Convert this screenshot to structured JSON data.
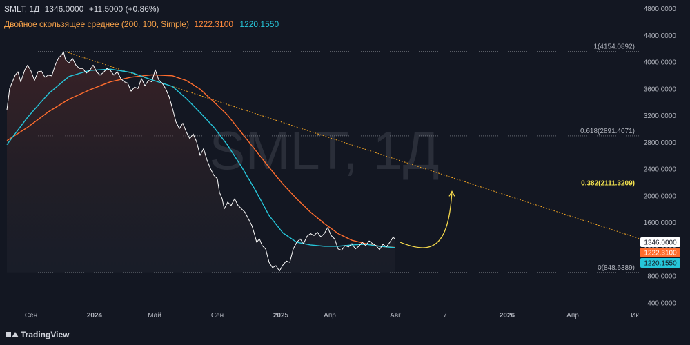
{
  "header": {
    "symbol": "SMLT, 1Д",
    "price": "1346.0000",
    "change": "+11.5000 (+0.86%)",
    "ma_title": "Двойное скользящее среднее (200, 100, Simple)",
    "ma_value_1": "1222.3100",
    "ma_value_2": "1220.1550"
  },
  "watermark": "SMLT, 1Д",
  "brand": "TradingView",
  "colors": {
    "background": "#131722",
    "price_line": "#ffffff",
    "ma_200": "#ff6d2e",
    "ma_100": "#26c6da",
    "trendline": "#f5a623",
    "fib_line": "#9aa0a6",
    "fib_highlight": "#f2e14f",
    "projection_arrow": "#f2d64b"
  },
  "chart_data": {
    "type": "line",
    "y_ticks": [
      "4800.0000",
      "4400.0000",
      "4000.0000",
      "3600.0000",
      "3200.0000",
      "2800.0000",
      "2400.0000",
      "2000.0000",
      "1600.0000",
      "1200.0000",
      "800.0000",
      "400.0000"
    ],
    "x_ticks": [
      "Сен",
      "2024",
      "Май",
      "Сен",
      "2025",
      "Апр",
      "Авг",
      "7",
      "2026",
      "Апр",
      "Ик"
    ],
    "ylim": [
      400,
      4800
    ],
    "series": [
      {
        "points": [
          [
            0,
            3280
          ],
          [
            4,
            3600
          ],
          [
            8,
            3700
          ],
          [
            12,
            3800
          ],
          [
            16,
            3850
          ],
          [
            20,
            3700
          ],
          [
            26,
            3880
          ],
          [
            30,
            3950
          ],
          [
            35,
            3860
          ],
          [
            40,
            3720
          ],
          [
            45,
            3850
          ],
          [
            50,
            3860
          ],
          [
            55,
            3770
          ],
          [
            60,
            3800
          ],
          [
            65,
            3790
          ],
          [
            70,
            3950
          ],
          [
            75,
            4060
          ],
          [
            80,
            4110
          ],
          [
            82,
            4150
          ],
          [
            85,
            4030
          ],
          [
            90,
            3980
          ],
          [
            95,
            4050
          ],
          [
            100,
            3950
          ],
          [
            105,
            3900
          ],
          [
            110,
            3900
          ],
          [
            115,
            3830
          ],
          [
            120,
            3870
          ],
          [
            125,
            3950
          ],
          [
            130,
            3850
          ],
          [
            135,
            3800
          ],
          [
            140,
            3840
          ],
          [
            145,
            3900
          ],
          [
            150,
            3870
          ],
          [
            155,
            3800
          ],
          [
            160,
            3850
          ],
          [
            165,
            3750
          ],
          [
            170,
            3700
          ],
          [
            175,
            3680
          ],
          [
            180,
            3560
          ],
          [
            185,
            3620
          ],
          [
            190,
            3600
          ],
          [
            195,
            3750
          ],
          [
            200,
            3640
          ],
          [
            205,
            3720
          ],
          [
            210,
            3700
          ],
          [
            215,
            3880
          ],
          [
            220,
            3730
          ],
          [
            225,
            3680
          ],
          [
            230,
            3600
          ],
          [
            235,
            3480
          ],
          [
            240,
            3300
          ],
          [
            245,
            3100
          ],
          [
            250,
            3000
          ],
          [
            255,
            3080
          ],
          [
            260,
            2950
          ],
          [
            265,
            2850
          ],
          [
            270,
            2920
          ],
          [
            275,
            2800
          ],
          [
            280,
            2600
          ],
          [
            285,
            2700
          ],
          [
            290,
            2530
          ],
          [
            295,
            2400
          ],
          [
            300,
            2300
          ],
          [
            305,
            2250
          ],
          [
            308,
            2050
          ],
          [
            312,
            1950
          ],
          [
            315,
            1800
          ],
          [
            320,
            1900
          ],
          [
            325,
            1850
          ],
          [
            330,
            1950
          ],
          [
            335,
            1850
          ],
          [
            340,
            1800
          ],
          [
            345,
            1750
          ],
          [
            350,
            1650
          ],
          [
            355,
            1550
          ],
          [
            358,
            1450
          ],
          [
            362,
            1300
          ],
          [
            366,
            1350
          ],
          [
            370,
            1250
          ],
          [
            375,
            1200
          ],
          [
            380,
            1000
          ],
          [
            385,
            920
          ],
          [
            390,
            950
          ],
          [
            395,
            870
          ],
          [
            400,
            960
          ],
          [
            405,
            1020
          ],
          [
            410,
            1000
          ],
          [
            415,
            1200
          ],
          [
            420,
            1300
          ],
          [
            425,
            1350
          ],
          [
            430,
            1280
          ],
          [
            435,
            1390
          ],
          [
            440,
            1430
          ],
          [
            445,
            1400
          ],
          [
            450,
            1450
          ],
          [
            455,
            1380
          ],
          [
            460,
            1430
          ],
          [
            465,
            1520
          ],
          [
            470,
            1400
          ],
          [
            475,
            1350
          ],
          [
            480,
            1200
          ],
          [
            485,
            1180
          ],
          [
            490,
            1250
          ],
          [
            495,
            1230
          ],
          [
            500,
            1280
          ],
          [
            505,
            1200
          ],
          [
            510,
            1240
          ],
          [
            515,
            1300
          ],
          [
            520,
            1250
          ],
          [
            525,
            1320
          ],
          [
            530,
            1280
          ],
          [
            535,
            1250
          ],
          [
            540,
            1190
          ],
          [
            545,
            1270
          ],
          [
            550,
            1230
          ],
          [
            555,
            1300
          ],
          [
            560,
            1380
          ],
          [
            562,
            1346
          ]
        ]
      },
      {
        "name": "MA 200",
        "points": [
          [
            0,
            2820
          ],
          [
            30,
            3020
          ],
          [
            60,
            3250
          ],
          [
            90,
            3440
          ],
          [
            120,
            3580
          ],
          [
            150,
            3700
          ],
          [
            180,
            3770
          ],
          [
            210,
            3805
          ],
          [
            240,
            3790
          ],
          [
            260,
            3720
          ],
          [
            280,
            3590
          ],
          [
            300,
            3400
          ],
          [
            320,
            3200
          ],
          [
            340,
            2940
          ],
          [
            360,
            2680
          ],
          [
            380,
            2420
          ],
          [
            400,
            2170
          ],
          [
            420,
            1950
          ],
          [
            440,
            1750
          ],
          [
            460,
            1580
          ],
          [
            480,
            1430
          ],
          [
            500,
            1330
          ],
          [
            520,
            1280
          ],
          [
            540,
            1240
          ],
          [
            562,
            1222
          ]
        ]
      },
      {
        "name": "MA 100",
        "points": [
          [
            0,
            2760
          ],
          [
            30,
            3170
          ],
          [
            60,
            3520
          ],
          [
            90,
            3780
          ],
          [
            120,
            3870
          ],
          [
            150,
            3890
          ],
          [
            180,
            3840
          ],
          [
            210,
            3730
          ],
          [
            240,
            3630
          ],
          [
            260,
            3450
          ],
          [
            280,
            3240
          ],
          [
            300,
            3020
          ],
          [
            320,
            2750
          ],
          [
            340,
            2430
          ],
          [
            360,
            2080
          ],
          [
            380,
            1700
          ],
          [
            400,
            1440
          ],
          [
            420,
            1300
          ],
          [
            440,
            1260
          ],
          [
            460,
            1240
          ],
          [
            480,
            1240
          ],
          [
            500,
            1260
          ],
          [
            520,
            1270
          ],
          [
            540,
            1240
          ],
          [
            562,
            1220
          ]
        ]
      }
    ],
    "last_labels": [
      "1346.0000",
      "1222.3100",
      "1220.1550"
    ],
    "fib_levels": [
      {
        "label": "1(4154.0892)",
        "value": 4154.0892
      },
      {
        "label": "0.618(2891.4071)",
        "value": 2891.4071
      },
      {
        "label": "0.382(2111.3209)",
        "value": 2111.3209
      },
      {
        "label": "0(848.6389)",
        "value": 848.6389
      }
    ],
    "trendline": {
      "from": [
        85,
        4150
      ],
      "to": [
        930,
        1310
      ]
    },
    "projection": {
      "from": [
        570,
        1300
      ],
      "to": [
        645,
        2060
      ]
    }
  }
}
